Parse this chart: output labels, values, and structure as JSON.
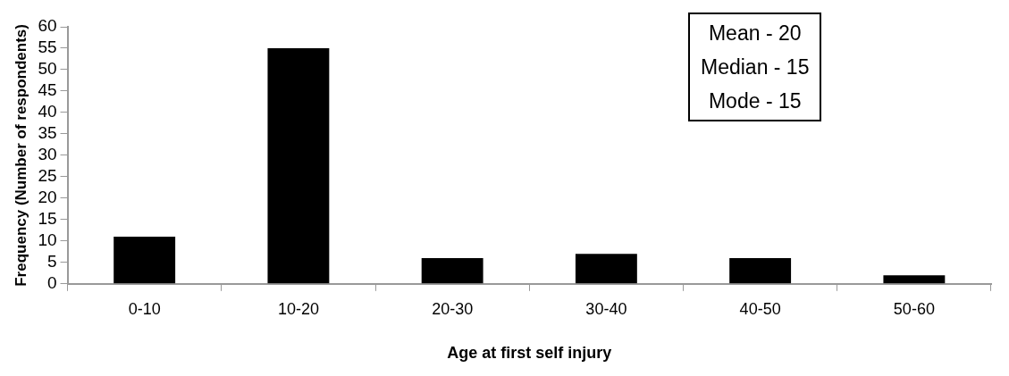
{
  "chart_data": {
    "type": "bar",
    "xlabel": "Age at first self injury",
    "ylabel": "Frequency (Number of respondents)",
    "categories": [
      "0-10",
      "10-20",
      "20-30",
      "30-40",
      "40-50",
      "50-60"
    ],
    "values": [
      11,
      55,
      6,
      7,
      6,
      2
    ],
    "color": "#000000",
    "ylim": [
      0,
      60
    ],
    "yticks": [
      0,
      5,
      10,
      15,
      20,
      25,
      30,
      35,
      40,
      45,
      50,
      55,
      60
    ],
    "grid": false,
    "legend": false,
    "annotations": [
      "Mean - 20",
      "Median - 15",
      "Mode - 15"
    ]
  }
}
